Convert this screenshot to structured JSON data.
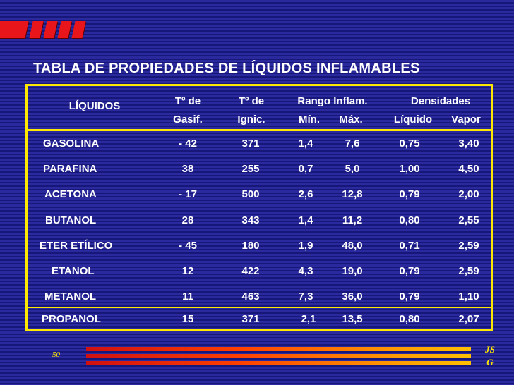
{
  "title": "TABLA DE PROPIEDADES DE LÍQUIDOS INFLAMABLES",
  "headers": {
    "liquidos": "LÍQUIDOS",
    "gasif_1": "Tº de",
    "gasif_2": "Gasif.",
    "ignic_1": "Tº de",
    "ignic_2": "Ignic.",
    "rango": "Rango Inflam.",
    "min": "Mín.",
    "max": "Máx.",
    "densidades": "Densidades",
    "liquido": "Líquido",
    "vapor": "Vapor"
  },
  "rows": [
    {
      "name": "GASOLINA",
      "gasif": "- 42",
      "ignic": "371",
      "min": "1,4",
      "max": "7,6",
      "liquido": "0,75",
      "vapor": "3,40"
    },
    {
      "name": "PARAFINA",
      "gasif": "38",
      "ignic": "255",
      "min": "0,7",
      "max": "5,0",
      "liquido": "1,00",
      "vapor": "4,50"
    },
    {
      "name": "ACETONA",
      "gasif": "- 17",
      "ignic": "500",
      "min": "2,6",
      "max": "12,8",
      "liquido": "0,79",
      "vapor": "2,00"
    },
    {
      "name": "BUTANOL",
      "gasif": "28",
      "ignic": "343",
      "min": "1,4",
      "max": "11,2",
      "liquido": "0,80",
      "vapor": "2,55"
    },
    {
      "name": "ETER ETÍLICO",
      "gasif": "- 45",
      "ignic": "180",
      "min": "1,9",
      "max": "48,0",
      "liquido": "0,71",
      "vapor": "2,59"
    },
    {
      "name": "ETANOL",
      "gasif": "12",
      "ignic": "422",
      "min": "4,3",
      "max": "19,0",
      "liquido": "0,79",
      "vapor": "2,59"
    },
    {
      "name": "METANOL",
      "gasif": "11",
      "ignic": "463",
      "min": "7,3",
      "max": "36,0",
      "liquido": "0,79",
      "vapor": "1,10"
    },
    {
      "name": "PROPANOL",
      "gasif": "15",
      "ignic": "371",
      "min": "2,1",
      "max": "13,5",
      "liquido": "0,80",
      "vapor": "2,07"
    }
  ],
  "footer": {
    "page_number": "50",
    "initials_1": "JS",
    "initials_2": "G"
  },
  "colors": {
    "background": "#1f1f8c",
    "border": "#ffe800",
    "logo": "#e8151b",
    "text": "#ffffff"
  }
}
